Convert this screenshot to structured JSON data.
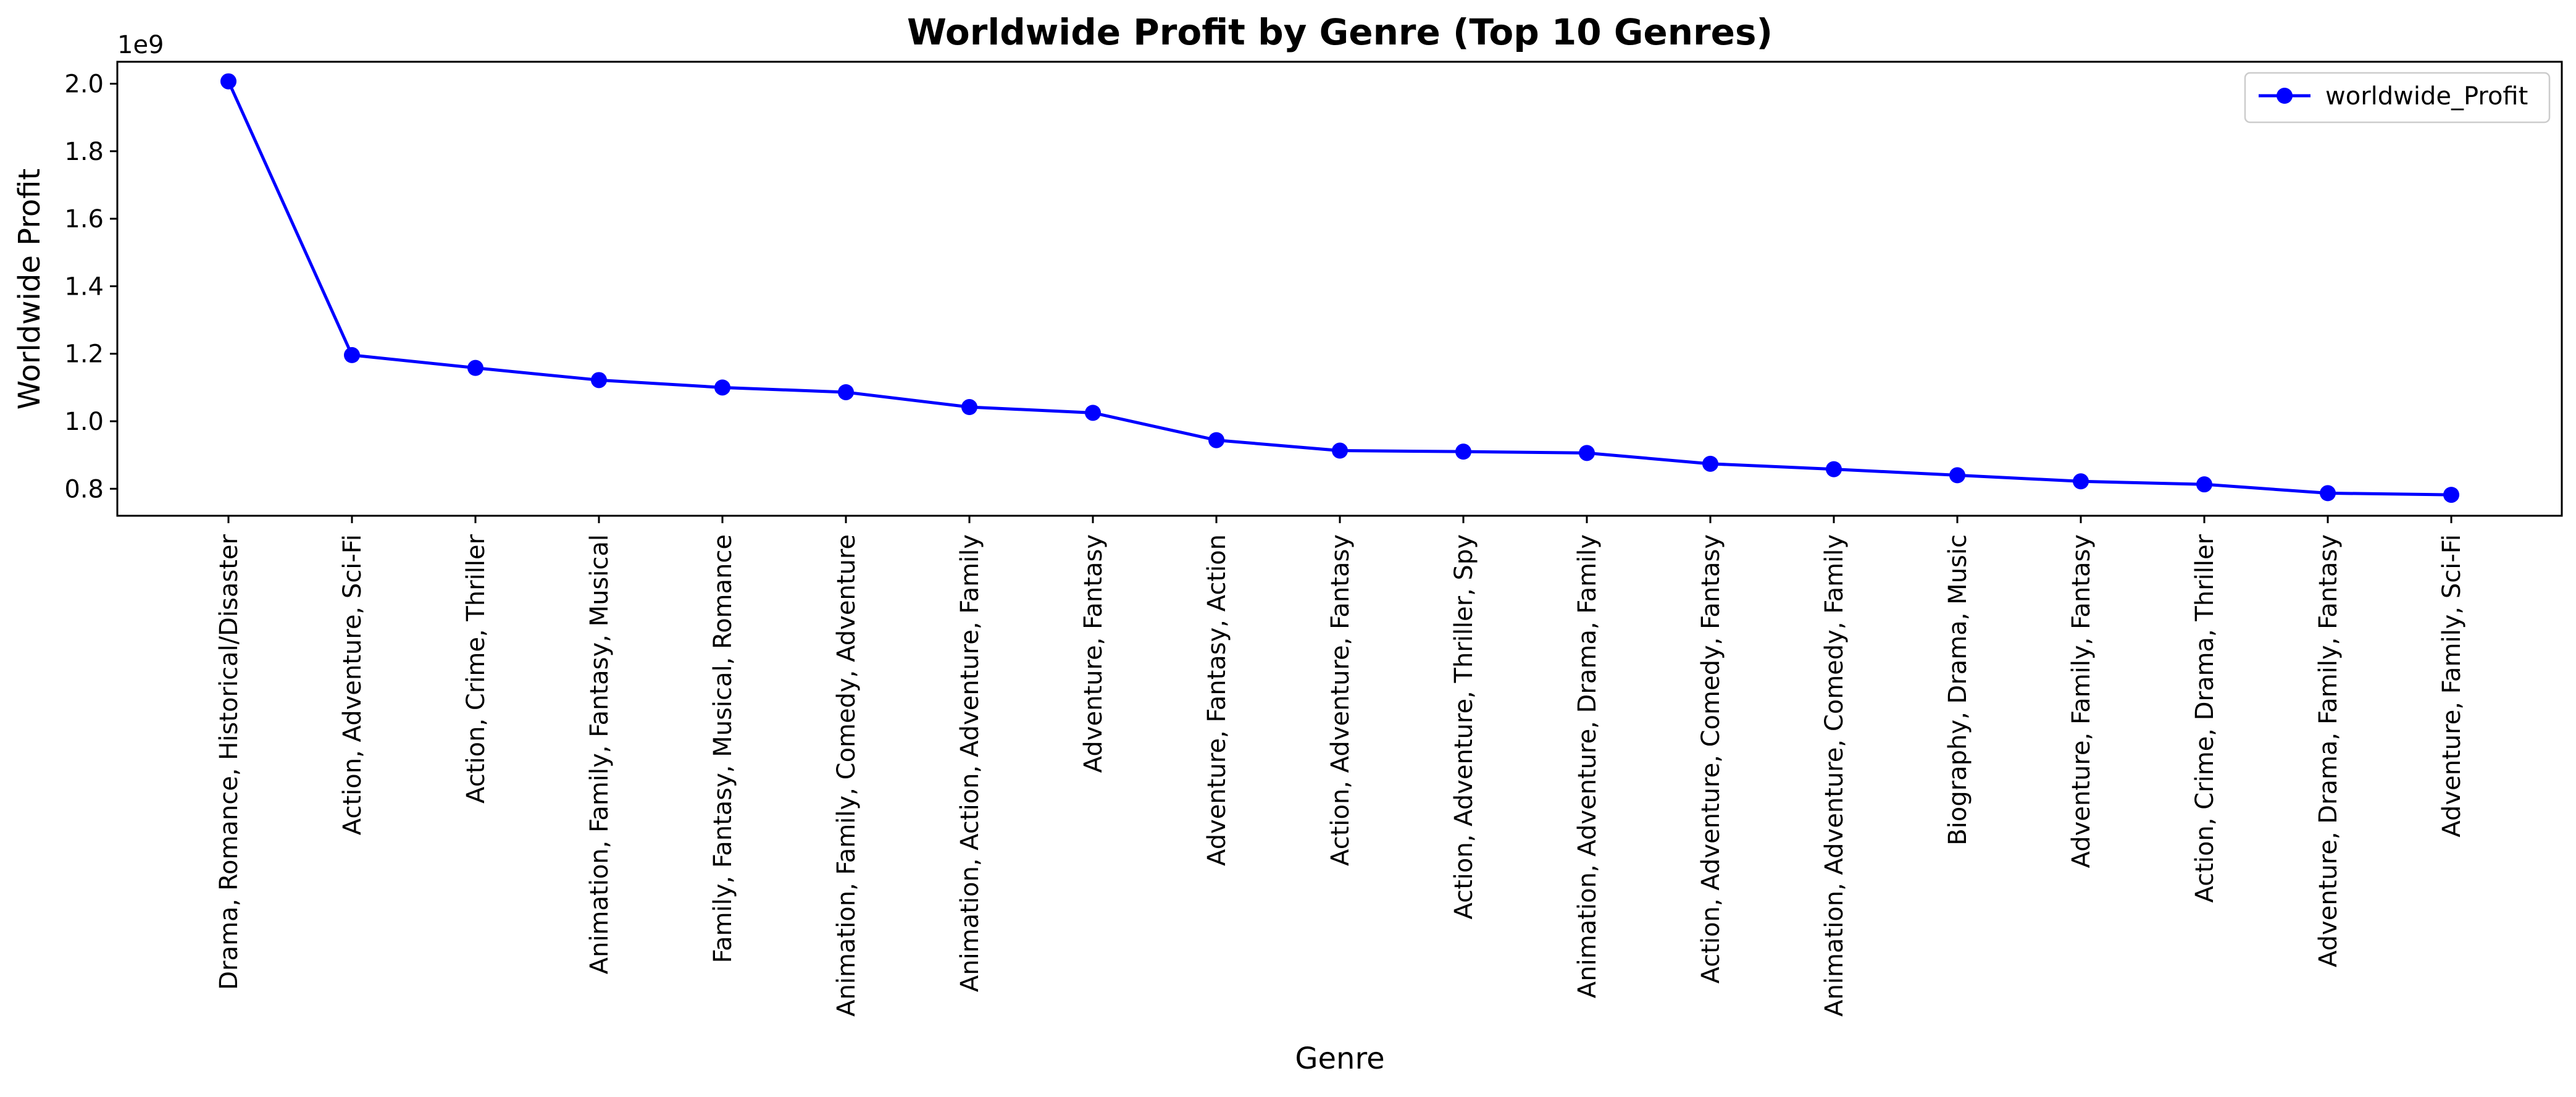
{
  "chart_data": {
    "type": "line",
    "title": "Worldwide Profit by Genre (Top 10 Genres)",
    "xlabel": "Genre",
    "ylabel": "Worldwide Profit",
    "y_offset_label": "1e9",
    "y_scale": 1000000000,
    "ylim": [
      0.72,
      2.065
    ],
    "yticks": [
      "0.8",
      "1.0",
      "1.2",
      "1.4",
      "1.6",
      "1.8",
      "2.0"
    ],
    "grid": false,
    "legend": "top-right",
    "series_color": "#0000ff",
    "categories": [
      "Drama, Romance, Historical/Disaster",
      "Action, Adventure, Sci-Fi",
      "Action, Crime, Thriller",
      "Animation, Family, Fantasy, Musical",
      "Family, Fantasy, Musical, Romance",
      "Animation, Family, Comedy, Adventure",
      "Animation, Action, Adventure, Family",
      "Adventure, Fantasy",
      "Adventure, Fantasy, Action",
      "Action, Adventure, Fantasy",
      "Action, Adventure, Thriller, Spy",
      "Animation, Adventure, Drama, Family",
      "Action, Adventure, Comedy, Fantasy",
      "Animation, Adventure, Comedy, Family",
      "Biography, Drama, Music",
      "Adventure, Family, Fantasy",
      "Action, Crime, Drama, Thriller",
      "Adventure, Drama, Family, Fantasy",
      "Adventure, Family, Sci-Fi"
    ],
    "series": [
      {
        "name": "worldwide_Profit",
        "values": [
          2.007,
          1.196,
          1.158,
          1.122,
          1.1,
          1.086,
          1.042,
          1.025,
          0.944,
          0.913,
          0.91,
          0.906,
          0.874,
          0.858,
          0.84,
          0.822,
          0.813,
          0.787,
          0.782
        ]
      }
    ]
  }
}
